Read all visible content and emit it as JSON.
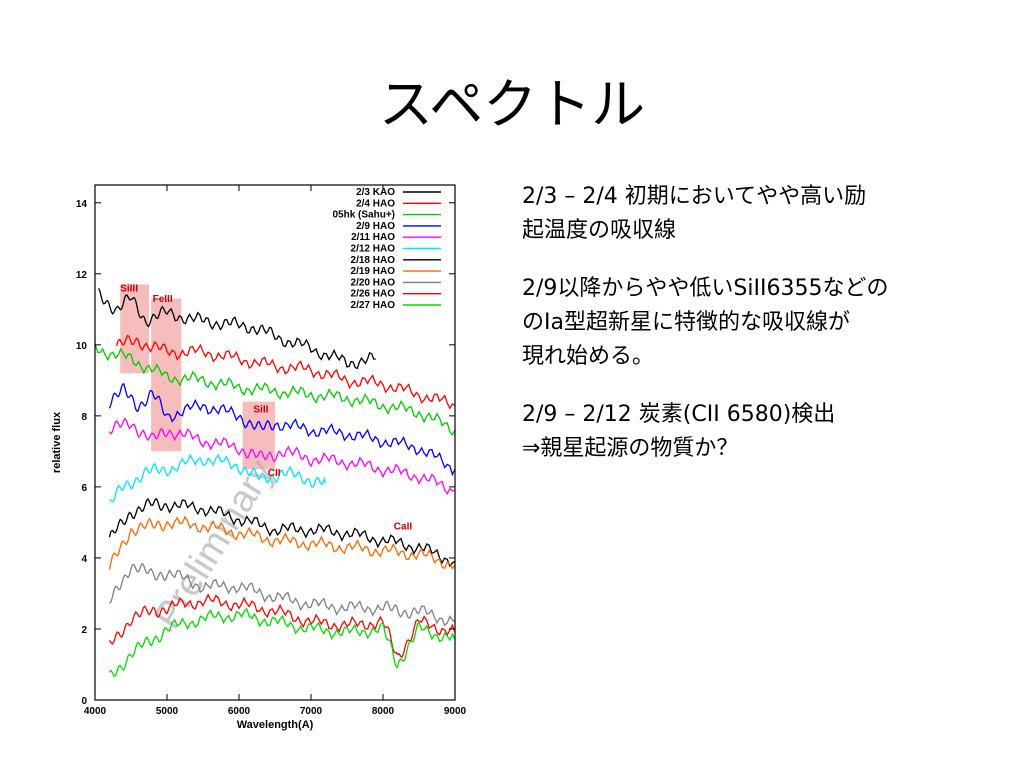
{
  "slide": {
    "title": "スペクトル",
    "bullets": [
      {
        "lines": [
          "2/3 – 2/4 初期においてやや高い励",
          "起温度の吸収線"
        ]
      },
      {
        "lines": [
          "2/9以降からやや低いSiII6355などの",
          "のIa型超新星に特徴的な吸収線が",
          "現れ始める。"
        ]
      },
      {
        "lines": [
          "2/9 – 2/12 炭素(CII 6580)検出",
          "⇒親星起源の物質か？"
        ]
      }
    ]
  },
  "chart_data": {
    "type": "line",
    "xlabel": "Wavelength(A)",
    "ylabel": "relative flux",
    "xlim": [
      4000,
      9000
    ],
    "ylim": [
      0,
      14.5
    ],
    "x_ticks": [
      4000,
      5000,
      6000,
      7000,
      8000,
      9000
    ],
    "y_ticks": [
      0,
      2,
      4,
      6,
      8,
      10,
      12,
      14
    ],
    "grid": false,
    "legend_position": "top-right",
    "watermark": "Preliminary",
    "series": [
      {
        "name": "2/3 KAO",
        "color": "#000000",
        "x": [
          4050,
          4300,
          4500,
          4700,
          5000,
          5400,
          5800,
          6200,
          6550,
          7000,
          7500,
          7900
        ],
        "y": [
          11.4,
          11.0,
          11.3,
          10.7,
          10.9,
          10.7,
          10.6,
          10.5,
          10.2,
          9.9,
          9.5,
          9.6
        ]
      },
      {
        "name": "2/4 HAO",
        "color": "#ff0000",
        "x": [
          4300,
          4600,
          5000,
          5500,
          6000,
          6500,
          7000,
          7500,
          8000,
          8500,
          9000
        ],
        "y": [
          10.0,
          10.1,
          9.8,
          9.8,
          9.6,
          9.4,
          9.3,
          9.0,
          8.9,
          8.6,
          8.3
        ]
      },
      {
        "name": "05hk (Sahu+)",
        "color": "#00cc00",
        "x": [
          4000,
          4500,
          5000,
          5500,
          6000,
          6500,
          7000,
          7500,
          8000,
          8500,
          9000
        ],
        "y": [
          9.9,
          9.6,
          9.1,
          9.0,
          8.8,
          8.7,
          8.6,
          8.5,
          8.3,
          8.1,
          7.6
        ]
      },
      {
        "name": "2/9 HAO",
        "color": "#0000ff",
        "x": [
          4200,
          4400,
          4600,
          4800,
          5000,
          5500,
          6000,
          6300,
          6500,
          7000,
          7500,
          8000,
          8500,
          9000
        ],
        "y": [
          8.4,
          8.7,
          8.3,
          8.6,
          8.0,
          8.3,
          8.0,
          7.6,
          7.8,
          7.6,
          7.5,
          7.3,
          7.1,
          6.5
        ]
      },
      {
        "name": "2/11 HAO",
        "color": "#ff00ff",
        "x": [
          4200,
          4500,
          4800,
          5000,
          5500,
          6000,
          6300,
          6600,
          7000,
          7500,
          8000,
          8500,
          9000
        ],
        "y": [
          7.6,
          7.8,
          7.3,
          7.6,
          7.3,
          7.1,
          6.8,
          7.0,
          6.8,
          6.7,
          6.5,
          6.3,
          5.9
        ]
      },
      {
        "name": "2/12 HAO",
        "color": "#00e5ff",
        "x": [
          4200,
          4400,
          4700,
          5000,
          5500,
          6000,
          6300,
          6600,
          7000,
          7200
        ],
        "y": [
          5.5,
          6.0,
          6.4,
          6.5,
          6.8,
          6.6,
          6.2,
          6.4,
          6.2,
          6.1
        ]
      },
      {
        "name": "2/18 HAO",
        "color": "#000000",
        "x": [
          4200,
          4500,
          4800,
          5000,
          5500,
          6000,
          6500,
          7000,
          7500,
          8000,
          8500,
          9000
        ],
        "y": [
          4.5,
          5.3,
          5.5,
          5.5,
          5.4,
          5.1,
          4.8,
          4.8,
          4.7,
          4.5,
          4.3,
          3.9
        ]
      },
      {
        "name": "2/19 HAO",
        "color": "#ff6600",
        "x": [
          4200,
          4500,
          4800,
          5000,
          5500,
          6000,
          6500,
          7000,
          7500,
          8000,
          8500,
          9000
        ],
        "y": [
          3.7,
          4.8,
          4.9,
          5.0,
          4.9,
          4.7,
          4.5,
          4.4,
          4.3,
          4.2,
          4.1,
          3.8
        ]
      },
      {
        "name": "2/20 HAO",
        "color": "#808080",
        "x": [
          4200,
          4500,
          4800,
          5000,
          5500,
          6000,
          6500,
          7000,
          7500,
          8000,
          8200,
          8500,
          9000
        ],
        "y": [
          2.7,
          3.8,
          3.5,
          3.6,
          3.2,
          3.2,
          2.9,
          2.7,
          2.6,
          2.6,
          2.5,
          2.5,
          2.2
        ]
      },
      {
        "name": "2/26 HAO",
        "color": "#ff0000",
        "x": [
          4200,
          4500,
          4800,
          5000,
          5500,
          6000,
          6500,
          7000,
          7500,
          8000,
          8200,
          8500,
          9000
        ],
        "y": [
          1.5,
          2.3,
          2.5,
          2.6,
          2.8,
          2.7,
          2.5,
          2.2,
          2.1,
          2.2,
          1.2,
          2.2,
          1.9
        ]
      },
      {
        "name": "2/27 HAO",
        "color": "#00dd00",
        "x": [
          4200,
          4500,
          4800,
          5000,
          5500,
          6000,
          6500,
          7000,
          7500,
          8000,
          8200,
          8500,
          9000
        ],
        "y": [
          0.6,
          1.3,
          1.7,
          2.0,
          2.3,
          2.4,
          2.2,
          2.0,
          1.9,
          2.0,
          1.0,
          2.0,
          1.7
        ]
      }
    ],
    "annotations": [
      {
        "text": "SiIII",
        "x": 4350,
        "y": 11.5
      },
      {
        "text": "FeIII",
        "x": 4800,
        "y": 11.2
      },
      {
        "text": "SiII",
        "x": 6200,
        "y": 8.1
      },
      {
        "text": "CII",
        "x": 6400,
        "y": 6.3
      },
      {
        "text": "CaII",
        "x": 8150,
        "y": 4.8
      }
    ],
    "highlight_bands": [
      {
        "x0": 4350,
        "x1": 4750,
        "y0": 9.2,
        "y1": 11.7
      },
      {
        "x0": 4780,
        "x1": 5200,
        "y0": 7.0,
        "y1": 11.3
      },
      {
        "x0": 6050,
        "x1": 6500,
        "y0": 6.5,
        "y1": 8.4
      }
    ]
  }
}
